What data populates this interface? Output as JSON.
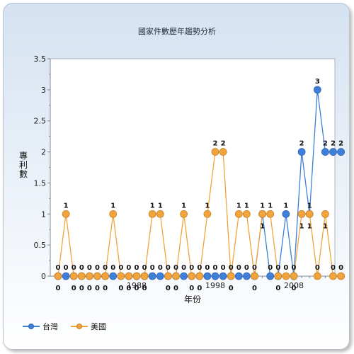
{
  "chart_data": {
    "type": "line",
    "title": "國家件數歷年趨勢分析",
    "xlabel": "年份",
    "ylabel": "專利數",
    "x": [
      1978,
      1979,
      1980,
      1981,
      1982,
      1983,
      1984,
      1985,
      1986,
      1987,
      1988,
      1989,
      1990,
      1991,
      1992,
      1993,
      1994,
      1995,
      1996,
      1997,
      1998,
      1999,
      2000,
      2001,
      2002,
      2003,
      2004,
      2005,
      2006,
      2007,
      2008,
      2009,
      2010,
      2011,
      2012,
      2013,
      2014
    ],
    "x_ticks": [
      "1988",
      "1998",
      "2008"
    ],
    "y_ticks": [
      "0",
      "0.5",
      "1",
      "1.5",
      "2",
      "2.5",
      "3",
      "3.5"
    ],
    "ylim": [
      0,
      3.5
    ],
    "grid": false,
    "legend_position": "bottom-left",
    "series": [
      {
        "name": "台灣",
        "color": "#3f7fd8",
        "values": [
          0,
          0,
          0,
          0,
          0,
          0,
          0,
          0,
          0,
          0,
          0,
          0,
          0,
          0,
          0,
          0,
          0,
          0,
          0,
          0,
          0,
          0,
          0,
          0,
          0,
          0,
          1,
          0,
          0,
          1,
          0,
          2,
          1,
          3,
          2,
          2,
          2
        ]
      },
      {
        "name": "美國",
        "color": "#f2a43c",
        "values": [
          0,
          1,
          0,
          0,
          0,
          0,
          0,
          1,
          0,
          0,
          0,
          0,
          1,
          1,
          0,
          0,
          1,
          0,
          0,
          1,
          2,
          2,
          0,
          1,
          1,
          0,
          1,
          1,
          0,
          0,
          0,
          1,
          1,
          0,
          1,
          0,
          0
        ]
      }
    ]
  }
}
